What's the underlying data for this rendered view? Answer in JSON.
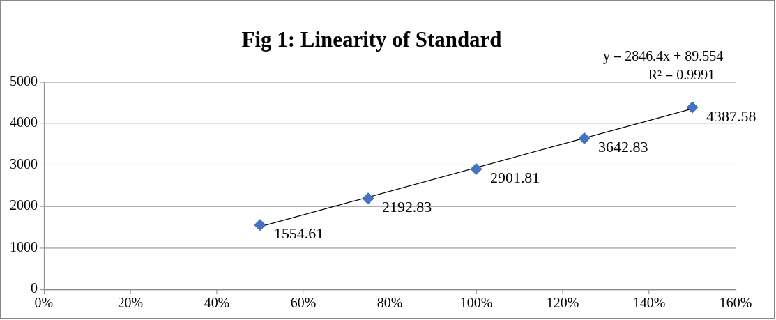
{
  "chart_data": {
    "type": "scatter",
    "title": "Fig 1: Linearity of Standard",
    "x": [
      0.5,
      0.75,
      1.0,
      1.25,
      1.5
    ],
    "series": [
      {
        "type": "scatter",
        "color": "#4472c4",
        "values": [
          1554.61,
          2192.83,
          2901.81,
          3642.83,
          4387.58
        ],
        "value_labels": [
          "1554.61",
          "2192.83",
          "2901.81",
          "3642.83",
          "4387.58"
        ]
      },
      {
        "type": "line",
        "color": "#000000",
        "x": [
          0.5,
          1.5
        ],
        "values": [
          1513,
          4359
        ],
        "marker": "none"
      }
    ],
    "xlim": [
      0,
      1.6
    ],
    "xticks": [
      {
        "value": 0,
        "label": "0%"
      },
      {
        "value": 0.2,
        "label": "20%"
      },
      {
        "value": 0.4,
        "label": "40%"
      },
      {
        "value": 0.6,
        "label": "60%"
      },
      {
        "value": 0.8,
        "label": "80%"
      },
      {
        "value": 1.0,
        "label": "100%"
      },
      {
        "value": 1.2,
        "label": "120%"
      },
      {
        "value": 1.4,
        "label": "140%"
      },
      {
        "value": 1.6,
        "label": "160%"
      }
    ],
    "ylim": [
      0,
      5000
    ],
    "yticks": [
      0,
      1000,
      2000,
      3000,
      4000,
      5000
    ],
    "grid": "y",
    "legend": false,
    "marker": "diamond",
    "annotations": [
      "y = 2846.4x + 89.554",
      "R² = 0.9991"
    ]
  }
}
